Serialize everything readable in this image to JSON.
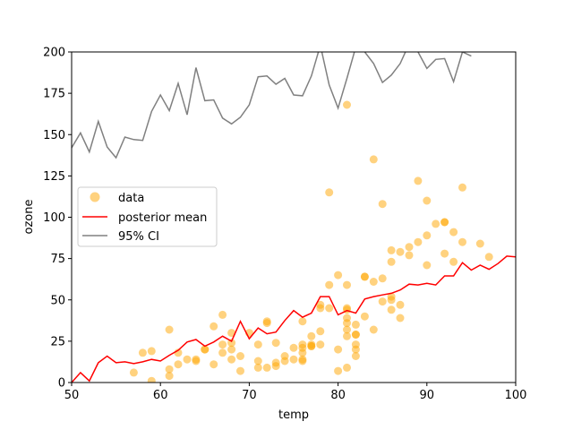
{
  "chart_data": {
    "type": "scatter",
    "xlabel": "temp",
    "ylabel": "ozone",
    "xlim": [
      50,
      100
    ],
    "ylim": [
      0,
      200
    ],
    "xticks": [
      "50",
      "60",
      "70",
      "80",
      "90",
      "100"
    ],
    "yticks": [
      "0",
      "25",
      "50",
      "75",
      "100",
      "125",
      "150",
      "175",
      "200"
    ],
    "grid": false,
    "legend_position": "center-left",
    "legend": {
      "data_label": "data",
      "mean_label": "posterior mean",
      "ci_label": "95% CI"
    },
    "colors": {
      "data": "#ffa500",
      "mean": "#ff0000",
      "ci": "#808080"
    },
    "series": [
      {
        "name": "data",
        "kind": "scatter",
        "points": [
          [
            57,
            6
          ],
          [
            58,
            18
          ],
          [
            59,
            19
          ],
          [
            59,
            1
          ],
          [
            61,
            32
          ],
          [
            61,
            8
          ],
          [
            61,
            4
          ],
          [
            62,
            18
          ],
          [
            62,
            11
          ],
          [
            63,
            14
          ],
          [
            64,
            13
          ],
          [
            64,
            14
          ],
          [
            65,
            20
          ],
          [
            65,
            20
          ],
          [
            66,
            34
          ],
          [
            66,
            11
          ],
          [
            67,
            41
          ],
          [
            67,
            23
          ],
          [
            67,
            18
          ],
          [
            68,
            30
          ],
          [
            68,
            24
          ],
          [
            68,
            14
          ],
          [
            68,
            20
          ],
          [
            69,
            16
          ],
          [
            69,
            7
          ],
          [
            70,
            30
          ],
          [
            71,
            23
          ],
          [
            71,
            13
          ],
          [
            71,
            9
          ],
          [
            72,
            36
          ],
          [
            72,
            37
          ],
          [
            72,
            9
          ],
          [
            73,
            24
          ],
          [
            73,
            12
          ],
          [
            73,
            10
          ],
          [
            74,
            16
          ],
          [
            74,
            13
          ],
          [
            75,
            21
          ],
          [
            75,
            14
          ],
          [
            76,
            37
          ],
          [
            76,
            23
          ],
          [
            76,
            21
          ],
          [
            76,
            18
          ],
          [
            76,
            13
          ],
          [
            76,
            14
          ],
          [
            77,
            28
          ],
          [
            77,
            23
          ],
          [
            77,
            22
          ],
          [
            77,
            22
          ],
          [
            78,
            47
          ],
          [
            78,
            45
          ],
          [
            78,
            31
          ],
          [
            78,
            23
          ],
          [
            79,
            115
          ],
          [
            79,
            59
          ],
          [
            79,
            45
          ],
          [
            80,
            65
          ],
          [
            80,
            20
          ],
          [
            80,
            7
          ],
          [
            81,
            168
          ],
          [
            81,
            59
          ],
          [
            81,
            45
          ],
          [
            81,
            44
          ],
          [
            81,
            39
          ],
          [
            81,
            36
          ],
          [
            81,
            32
          ],
          [
            81,
            28
          ],
          [
            81,
            9
          ],
          [
            82,
            35
          ],
          [
            82,
            29
          ],
          [
            82,
            29
          ],
          [
            82,
            23
          ],
          [
            82,
            20
          ],
          [
            82,
            16
          ],
          [
            83,
            64
          ],
          [
            83,
            64
          ],
          [
            83,
            40
          ],
          [
            84,
            135
          ],
          [
            84,
            61
          ],
          [
            84,
            32
          ],
          [
            85,
            108
          ],
          [
            85,
            63
          ],
          [
            85,
            49
          ],
          [
            86,
            80
          ],
          [
            86,
            73
          ],
          [
            86,
            52
          ],
          [
            86,
            50
          ],
          [
            86,
            44
          ],
          [
            87,
            79
          ],
          [
            87,
            47
          ],
          [
            87,
            39
          ],
          [
            88,
            82
          ],
          [
            88,
            77
          ],
          [
            89,
            122
          ],
          [
            89,
            85
          ],
          [
            90,
            110
          ],
          [
            90,
            89
          ],
          [
            90,
            71
          ],
          [
            91,
            96
          ],
          [
            92,
            97
          ],
          [
            92,
            97
          ],
          [
            92,
            78
          ],
          [
            93,
            91
          ],
          [
            93,
            73
          ],
          [
            94,
            118
          ],
          [
            94,
            85
          ],
          [
            96,
            84
          ],
          [
            97,
            76
          ]
        ]
      },
      {
        "name": "posterior mean",
        "kind": "line",
        "x": [
          50,
          51,
          52,
          53,
          54,
          55,
          56,
          57,
          58,
          59,
          60,
          61,
          62,
          63,
          64,
          65,
          66,
          67,
          68,
          69,
          70,
          71,
          72,
          73,
          74,
          75,
          76,
          77,
          78,
          79,
          80,
          81,
          82,
          83,
          84,
          85,
          86,
          87,
          88,
          89,
          90,
          91,
          92,
          93,
          94,
          95,
          96,
          97,
          98,
          99,
          100
        ],
        "y": [
          0,
          6,
          1,
          12,
          16,
          12,
          12.5,
          11.5,
          12.5,
          14,
          13,
          16.5,
          19.5,
          24.5,
          26,
          22,
          24.5,
          28,
          25,
          37,
          26.5,
          33,
          29.5,
          30.5,
          37.5,
          43.5,
          39.5,
          42,
          52,
          52,
          41,
          43.5,
          42,
          50.5,
          52,
          53,
          54,
          56,
          59.5,
          59,
          60,
          59,
          64.5,
          64.5,
          72.5,
          68,
          71,
          68.5,
          72,
          76.5,
          76
        ]
      },
      {
        "name": "95% CI",
        "kind": "line",
        "x": [
          50,
          51,
          52,
          53,
          54,
          55,
          56,
          57,
          58,
          59,
          60,
          61,
          62,
          63,
          64,
          65,
          66,
          67,
          68,
          69,
          70,
          71,
          72,
          73,
          74,
          75,
          76,
          77,
          78,
          79,
          80,
          81,
          82,
          83,
          84,
          85,
          86,
          87,
          88,
          89,
          90,
          91,
          92,
          93,
          94,
          95
        ],
        "y": [
          142,
          151,
          139.5,
          158,
          142.5,
          136,
          148.5,
          147,
          146.5,
          164,
          174,
          164.5,
          181,
          162,
          190.5,
          170.5,
          171,
          160,
          156.5,
          160.5,
          168,
          185,
          185.5,
          180.5,
          184,
          174,
          173.5,
          185.5,
          204,
          180,
          166,
          184,
          203,
          200,
          193,
          181.5,
          186,
          193,
          205,
          200,
          190,
          195.5,
          196,
          182,
          200,
          197.5
        ]
      }
    ]
  }
}
